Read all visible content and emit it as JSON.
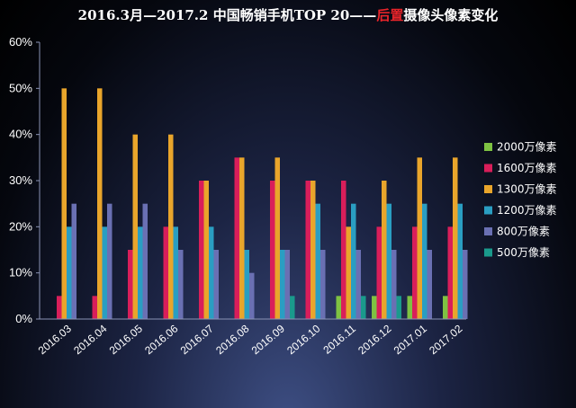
{
  "chart_data": {
    "type": "bar",
    "title": "2016.3月—2017.2 中国畅销手机TOP 20——后置摄像头像素变化",
    "title_parts": {
      "lead": "2016.3月—2017.2 中国畅销手机TOP 20——",
      "highlight": "后置",
      "tail": "摄像头像素变化"
    },
    "xlabel": "",
    "ylabel": "",
    "ylim": [
      0,
      60
    ],
    "y_ticks": [
      "0%",
      "10%",
      "20%",
      "30%",
      "40%",
      "50%",
      "60%"
    ],
    "grid": false,
    "legend_position": "right",
    "categories": [
      "2016.03",
      "2016.04",
      "2016.05",
      "2016.06",
      "2016.07",
      "2016.08",
      "2016.09",
      "2016.10",
      "2016.11",
      "2016.12",
      "2017.01",
      "2017.02"
    ],
    "series": [
      {
        "name": "2000万像素",
        "color": "#7ec242",
        "values": [
          0,
          0,
          0,
          0,
          0,
          0,
          0,
          0,
          5,
          5,
          5,
          5
        ]
      },
      {
        "name": "1600万像素",
        "color": "#d91e5a",
        "values": [
          5,
          5,
          15,
          20,
          30,
          35,
          30,
          30,
          30,
          20,
          20,
          20
        ]
      },
      {
        "name": "1300万像素",
        "color": "#e9a52b",
        "values": [
          50,
          50,
          40,
          40,
          30,
          35,
          35,
          30,
          20,
          30,
          35,
          35
        ]
      },
      {
        "name": "1200万像素",
        "color": "#2a9ec2",
        "values": [
          20,
          20,
          20,
          20,
          20,
          15,
          15,
          25,
          25,
          25,
          25,
          25
        ]
      },
      {
        "name": "800万像素",
        "color": "#6a70b3",
        "values": [
          25,
          25,
          25,
          15,
          15,
          10,
          15,
          15,
          15,
          15,
          15,
          15
        ]
      },
      {
        "name": "500万像素",
        "color": "#1a9a8c",
        "values": [
          0,
          0,
          0,
          0,
          0,
          0,
          5,
          0,
          5,
          5,
          0,
          0
        ]
      }
    ]
  }
}
